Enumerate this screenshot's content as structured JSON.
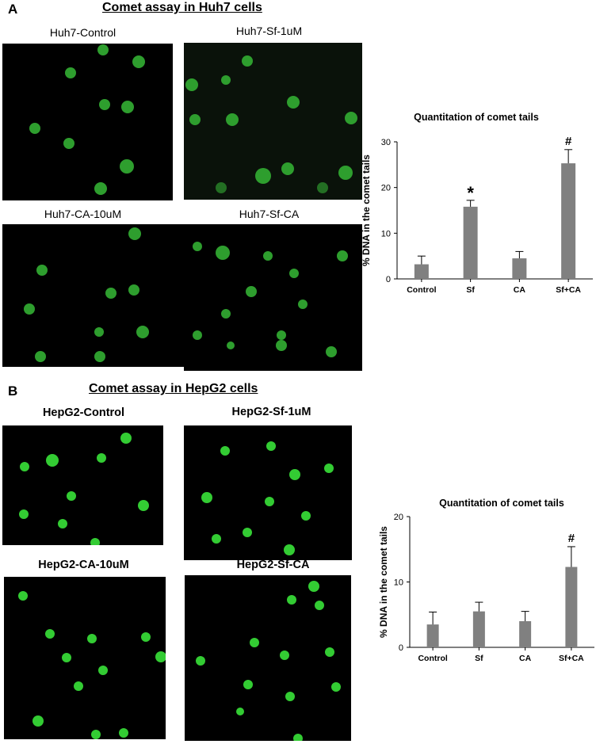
{
  "figure": {
    "panel_a": {
      "letter": "A",
      "title": "Comet assay in Huh7 cells",
      "images": [
        {
          "label": "Huh7-Control"
        },
        {
          "label": "Huh7-Sf-1uM"
        },
        {
          "label": "Huh7-CA-10uM"
        },
        {
          "label": "Huh7-Sf-CA"
        }
      ]
    },
    "panel_b": {
      "letter": "B",
      "title": "Comet assay in HepG2 cells",
      "images": [
        {
          "label": "HepG2-Control"
        },
        {
          "label": "HepG2-Sf-1uM"
        },
        {
          "label": "HepG2-CA-10uM"
        },
        {
          "label": "HepG2-Sf-CA"
        }
      ]
    },
    "colors": {
      "nucleus": "#3fbf3f",
      "bar": "#808080",
      "background": "#000000"
    }
  },
  "chart_data": [
    {
      "type": "bar",
      "title": "Quantitation of comet tails",
      "ylabel": "% DNA in the comet tails",
      "xlabel": "",
      "categories": [
        "Control",
        "Sf",
        "CA",
        "Sf+CA"
      ],
      "values": [
        3.2,
        15.8,
        4.5,
        25.3
      ],
      "errors": [
        1.8,
        1.4,
        1.5,
        3.0
      ],
      "annotations": [
        "",
        "*",
        "",
        "#"
      ],
      "ylim": [
        0,
        30
      ],
      "yticks": [
        "0",
        "10",
        "20",
        "30"
      ],
      "grid": false,
      "legend": "none"
    },
    {
      "type": "bar",
      "title": "Quantitation of comet tails",
      "ylabel": "% DNA in the comet tails",
      "xlabel": "",
      "categories": [
        "Control",
        "Sf",
        "CA",
        "Sf+CA"
      ],
      "values": [
        3.5,
        5.5,
        4.0,
        12.3
      ],
      "errors": [
        1.9,
        1.4,
        1.5,
        3.1
      ],
      "annotations": [
        "",
        "",
        "",
        "#"
      ],
      "ylim": [
        0,
        20
      ],
      "yticks": [
        "0",
        "10",
        "20"
      ],
      "grid": false,
      "legend": "none"
    }
  ]
}
